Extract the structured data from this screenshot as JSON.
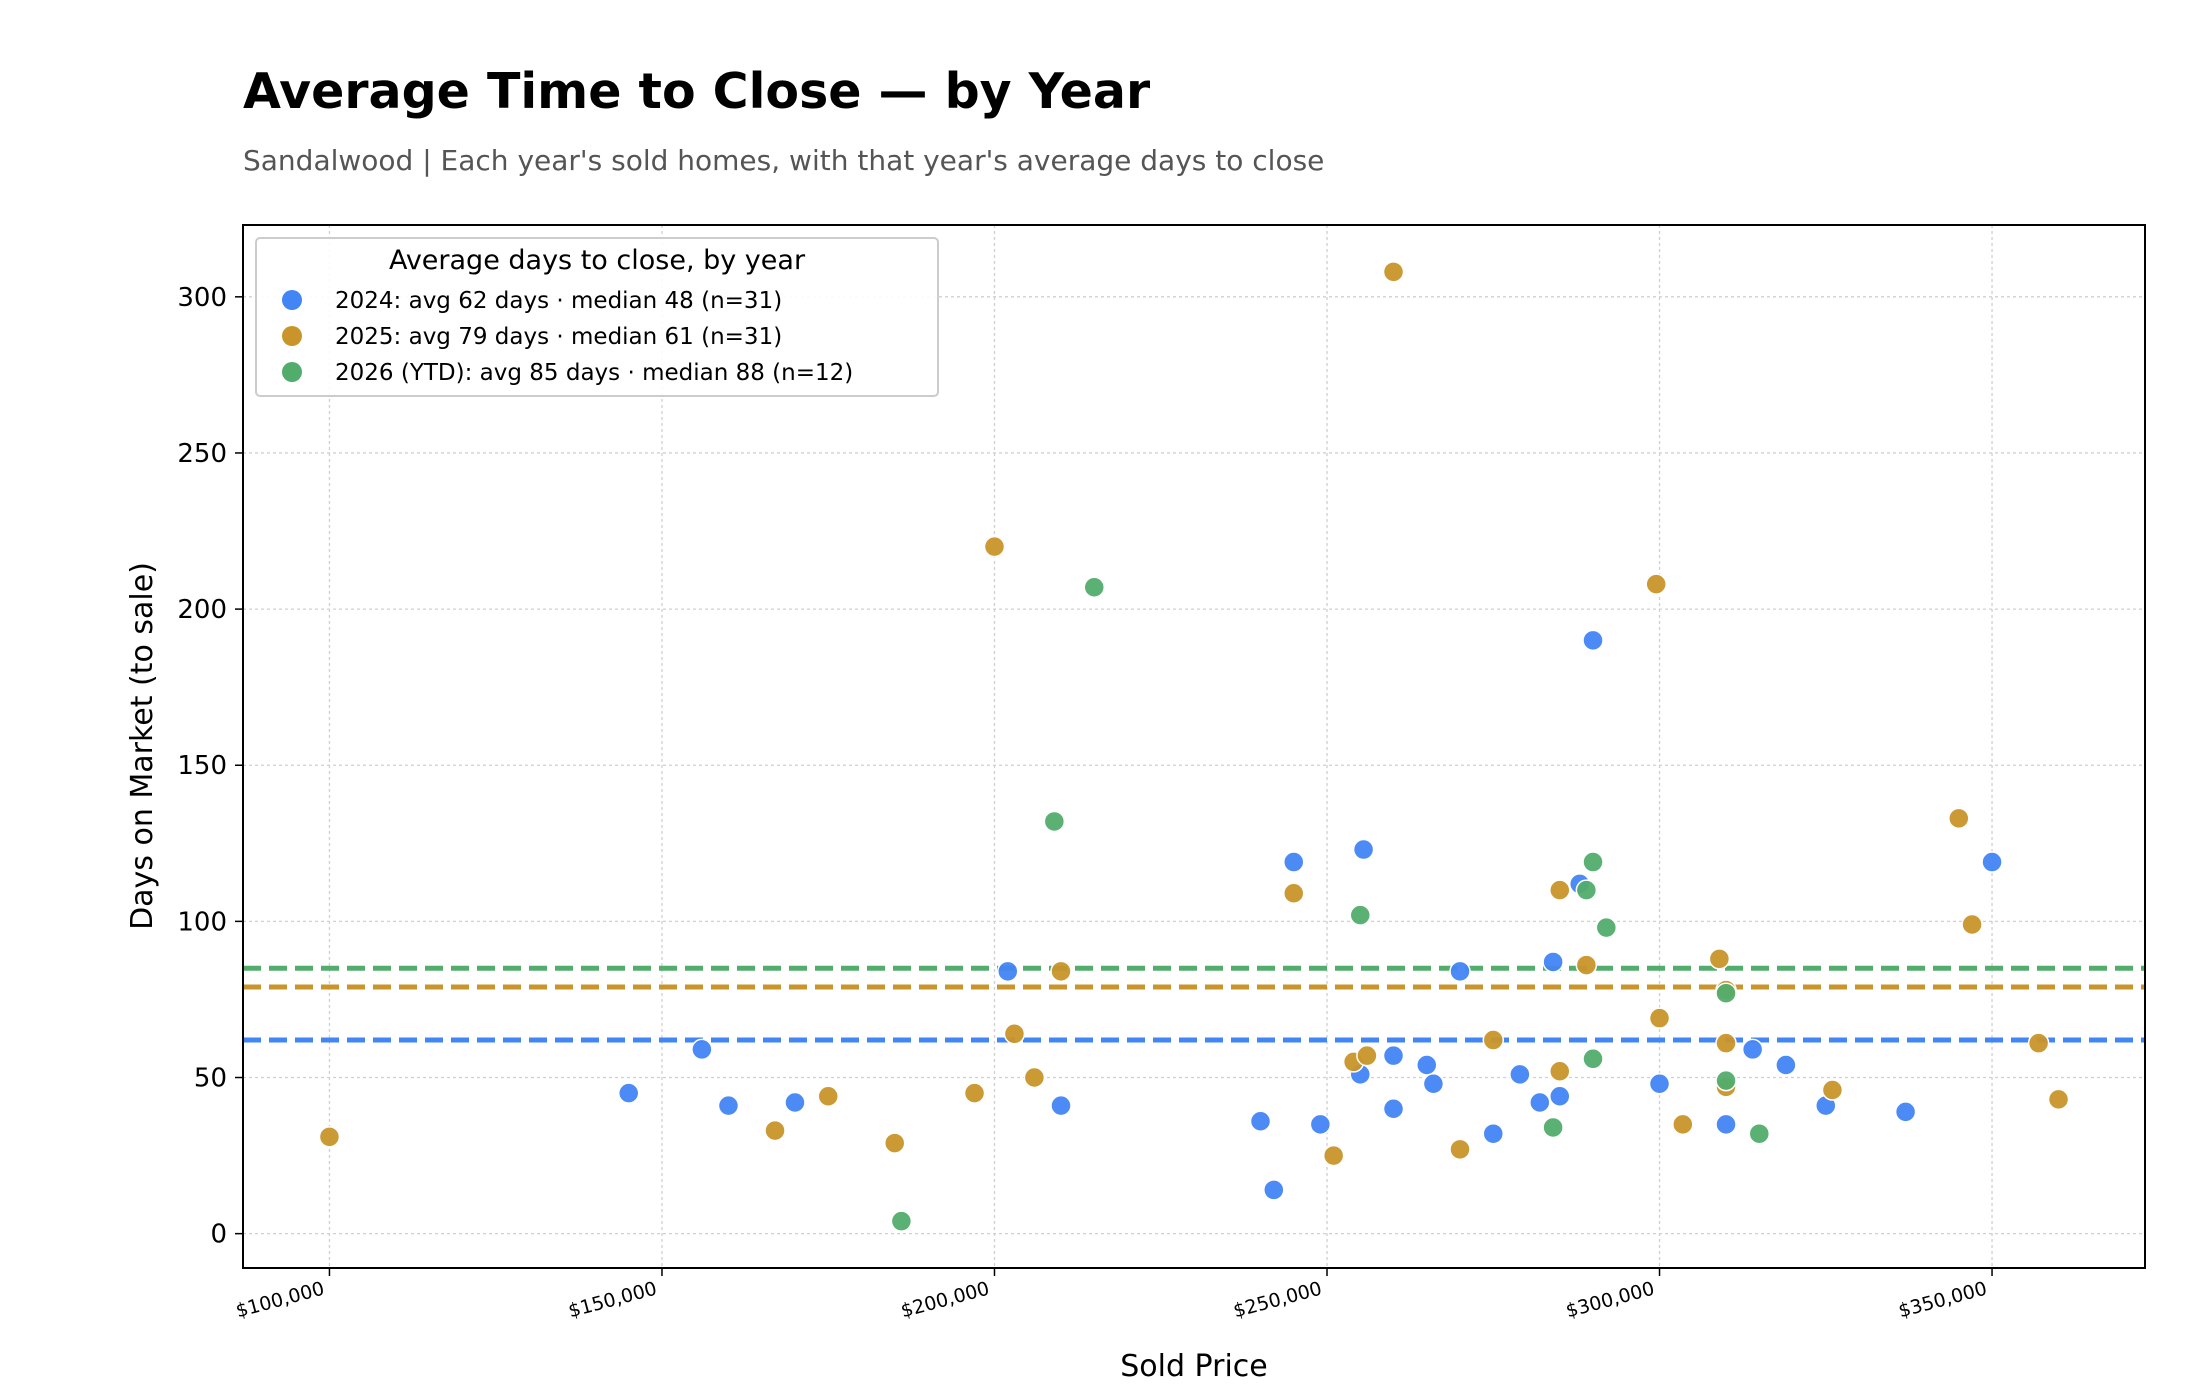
{
  "chart_data": {
    "type": "scatter",
    "title": "Average Time to Close — by Year",
    "subtitle": "Sandalwood  |  Each year's sold homes, with that year's average days to close",
    "xlabel": "Sold Price",
    "ylabel": "Days on Market (to sale)",
    "xlim": [
      87000,
      373000
    ],
    "ylim": [
      -11,
      323
    ],
    "x_ticks": [
      100000,
      150000,
      200000,
      250000,
      300000,
      350000
    ],
    "x_tick_labels": [
      "$100,000",
      "$150,000",
      "$200,000",
      "$250,000",
      "$300,000",
      "$350,000"
    ],
    "y_ticks": [
      0,
      50,
      100,
      150,
      200,
      250,
      300
    ],
    "y_tick_labels": [
      "0",
      "50",
      "100",
      "150",
      "200",
      "250",
      "300"
    ],
    "grid": true,
    "legend": {
      "title": "Average days to close, by year",
      "position": "top-left"
    },
    "series": [
      {
        "name": "2024: avg 62 days  ·  median 48  (n=31)",
        "color": "#4285f4",
        "average": 62,
        "points": [
          [
            145000,
            45
          ],
          [
            156000,
            59
          ],
          [
            160000,
            41
          ],
          [
            170000,
            42
          ],
          [
            202000,
            84
          ],
          [
            210000,
            41
          ],
          [
            240000,
            36
          ],
          [
            242000,
            14
          ],
          [
            245000,
            119
          ],
          [
            249000,
            35
          ],
          [
            255000,
            51
          ],
          [
            255500,
            123
          ],
          [
            260000,
            57
          ],
          [
            260000,
            40
          ],
          [
            265000,
            54
          ],
          [
            266000,
            48
          ],
          [
            270000,
            84
          ],
          [
            275000,
            32
          ],
          [
            279000,
            51
          ],
          [
            282000,
            42
          ],
          [
            284000,
            87
          ],
          [
            285000,
            44
          ],
          [
            288000,
            112
          ],
          [
            290000,
            190
          ],
          [
            300000,
            48
          ],
          [
            310000,
            35
          ],
          [
            314000,
            59
          ],
          [
            319000,
            54
          ],
          [
            325000,
            41
          ],
          [
            337000,
            39
          ],
          [
            350000,
            119
          ]
        ]
      },
      {
        "name": "2025: avg 79 days  ·  median 61  (n=31)",
        "color": "#c9952a",
        "average": 79,
        "points": [
          [
            100000,
            31
          ],
          [
            167000,
            33
          ],
          [
            175000,
            44
          ],
          [
            185000,
            29
          ],
          [
            197000,
            45
          ],
          [
            200000,
            220
          ],
          [
            203000,
            64
          ],
          [
            206000,
            50
          ],
          [
            210000,
            84
          ],
          [
            245000,
            109
          ],
          [
            251000,
            25
          ],
          [
            254000,
            55
          ],
          [
            256000,
            57
          ],
          [
            260000,
            308
          ],
          [
            270000,
            27
          ],
          [
            275000,
            62
          ],
          [
            285000,
            52
          ],
          [
            285000,
            110
          ],
          [
            289000,
            86
          ],
          [
            299500,
            208
          ],
          [
            300000,
            69
          ],
          [
            303500,
            35
          ],
          [
            309000,
            88
          ],
          [
            310000,
            78
          ],
          [
            310000,
            61
          ],
          [
            310000,
            47
          ],
          [
            326000,
            46
          ],
          [
            345000,
            133
          ],
          [
            347000,
            99
          ],
          [
            357000,
            61
          ],
          [
            360000,
            43
          ]
        ]
      },
      {
        "name": "2026 (YTD): avg 85 days  ·  median 88  (n=12)",
        "color": "#52ad6c",
        "average": 85,
        "points": [
          [
            186000,
            4
          ],
          [
            209000,
            132
          ],
          [
            215000,
            207
          ],
          [
            255000,
            102
          ],
          [
            284000,
            34
          ],
          [
            289000,
            110
          ],
          [
            290000,
            119
          ],
          [
            290000,
            56
          ],
          [
            292000,
            98
          ],
          [
            310000,
            77
          ],
          [
            310000,
            49
          ],
          [
            315000,
            32
          ]
        ]
      }
    ]
  }
}
